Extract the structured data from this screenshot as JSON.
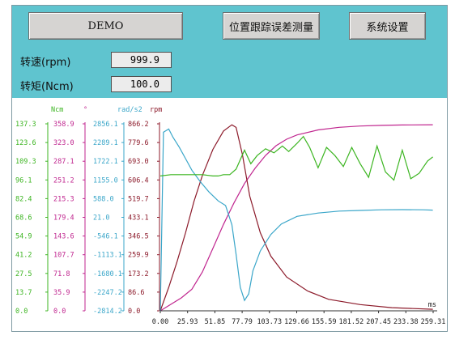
{
  "toolbar": {
    "demo_label": "DEMO",
    "tracking_label": "位置跟踪误差测量",
    "settings_label": "系统设置"
  },
  "readouts": {
    "speed": {
      "label": "转速(rpm)",
      "value": "999.9"
    },
    "torque": {
      "label": "转矩(Ncm)",
      "value": "100.0"
    }
  },
  "colors": {
    "panel": "#5fc4cf",
    "ncm": "#3cb521",
    "degree": "#c0268f",
    "rad": "#3aa6c9",
    "rpm": "#8c1a2a"
  },
  "chart_data": {
    "type": "line",
    "x_unit": "ms",
    "x_ticks": [
      "0.00",
      "25.93",
      "51.85",
      "77.79",
      "103.73",
      "129.66",
      "155.59",
      "181.52",
      "207.45",
      "233.38",
      "259.31"
    ],
    "xlim": [
      0,
      259.31
    ],
    "axes": [
      {
        "unit": "Ncm",
        "ticks": [
          "137.3",
          "123.6",
          "109.3",
          "96.1",
          "82.4",
          "68.6",
          "54.9",
          "41.2",
          "27.5",
          "13.7",
          "0.0"
        ]
      },
      {
        "unit": "°",
        "ticks": [
          "358.9",
          "323.0",
          "287.1",
          "251.2",
          "215.3",
          "179.4",
          "143.6",
          "107.7",
          "71.8",
          "35.9",
          "0.0"
        ]
      },
      {
        "unit": "rad/s2",
        "ticks": [
          "2856.1",
          "2289.1",
          "1722.1",
          "1155.0",
          "588.0",
          "21.0",
          "-546.1",
          "-1113.1",
          "-1680.1",
          "-2247.2",
          "-2814.2"
        ]
      },
      {
        "unit": "rpm",
        "ticks": [
          "866.2",
          "779.6",
          "693.0",
          "606.4",
          "519.7",
          "433.1",
          "346.5",
          "259.9",
          "173.2",
          "86.6",
          "0.0"
        ]
      }
    ],
    "series": [
      {
        "unit": "rpm",
        "color": "#c0268f",
        "x": [
          0,
          10,
          20,
          30,
          40,
          50,
          60,
          70,
          80,
          90,
          100,
          110,
          120,
          130,
          150,
          170,
          190,
          210,
          230,
          259
        ],
        "y": [
          0,
          30,
          60,
          100,
          180,
          290,
          400,
          500,
          590,
          660,
          720,
          765,
          795,
          815,
          838,
          850,
          856,
          859,
          861,
          862
        ]
      },
      {
        "unit": "°",
        "color": "#8c1a2a",
        "x": [
          0,
          8,
          16,
          24,
          32,
          40,
          50,
          60,
          68,
          72,
          78,
          85,
          95,
          105,
          120,
          140,
          160,
          190,
          220,
          259
        ],
        "y": [
          0,
          45,
          95,
          150,
          210,
          260,
          310,
          345,
          357,
          352,
          300,
          220,
          150,
          105,
          65,
          38,
          22,
          12,
          6,
          3
        ]
      },
      {
        "unit": "rad/s2",
        "color": "#3aa6c9",
        "x": [
          0,
          3,
          8,
          12,
          18,
          24,
          30,
          38,
          46,
          55,
          62,
          68,
          72,
          76,
          80,
          84,
          88,
          95,
          105,
          115,
          130,
          150,
          170,
          190,
          210,
          230,
          250,
          259
        ],
        "y": [
          -2814,
          2600,
          2700,
          2450,
          2150,
          1800,
          1450,
          1100,
          800,
          520,
          380,
          -200,
          -1100,
          -2100,
          -2500,
          -2300,
          -1600,
          -1000,
          -500,
          -180,
          50,
          150,
          210,
          230,
          250,
          255,
          250,
          240
        ]
      },
      {
        "unit": "Ncm",
        "color": "#3cb521",
        "x": [
          0,
          10,
          20,
          30,
          40,
          50,
          55,
          60,
          66,
          72,
          80,
          86,
          92,
          100,
          108,
          116,
          122,
          130,
          136,
          142,
          150,
          158,
          166,
          174,
          182,
          190,
          198,
          206,
          214,
          222,
          230,
          238,
          246,
          254,
          259
        ],
        "y": [
          99,
          100,
          100,
          100,
          100,
          99,
          99,
          100,
          100,
          104,
          118,
          108,
          114,
          119,
          116,
          121,
          117,
          123,
          128,
          120,
          105,
          120,
          114,
          106,
          120,
          108,
          98,
          121,
          102,
          96,
          118,
          97,
          101,
          110,
          113
        ]
      }
    ]
  }
}
